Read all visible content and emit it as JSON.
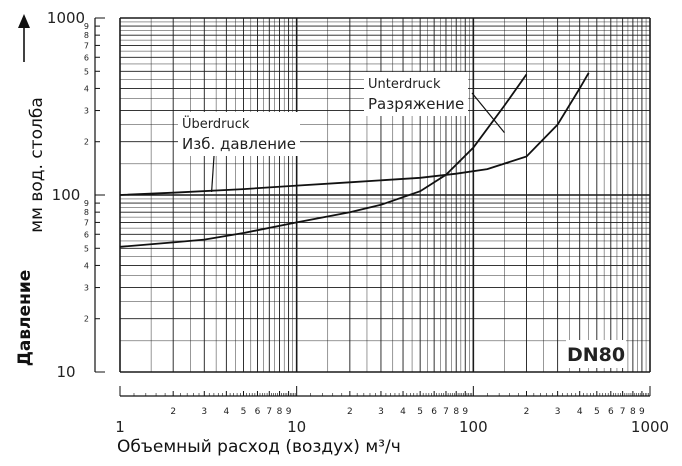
{
  "chart_data": {
    "type": "line",
    "xscale": "log",
    "yscale": "log",
    "xlim": [
      1,
      1000
    ],
    "ylim": [
      10,
      1000
    ],
    "xlabel": "Объемный расход (воздух) м³/ч",
    "ylabel_top": "мм вод. столба",
    "ylabel_bottom": "Давление",
    "x_major_ticks": [
      {
        "value": 1,
        "label": "1"
      },
      {
        "value": 10,
        "label": "10"
      },
      {
        "value": 100,
        "label": "100"
      },
      {
        "value": 1000,
        "label": "1000"
      }
    ],
    "y_major_ticks": [
      {
        "value": 10,
        "label": "10"
      },
      {
        "value": 100,
        "label": "100"
      },
      {
        "value": 1000,
        "label": "1000"
      }
    ],
    "minor_tick_labels": [
      "2",
      "3",
      "4",
      "5",
      "6",
      "7",
      "8",
      "9"
    ],
    "annotation": "DN80",
    "series": [
      {
        "label_de": "Überdruck",
        "label_ru": "Изб. давление",
        "x": [
          1,
          2,
          5,
          10,
          20,
          50,
          80,
          120,
          200,
          300,
          400,
          450
        ],
        "y": [
          100,
          103,
          108,
          113,
          118,
          125,
          132,
          140,
          165,
          250,
          400,
          490
        ]
      },
      {
        "label_de": "Unterdruck",
        "label_ru": "Разряжение",
        "x": [
          1,
          2,
          3,
          5,
          10,
          20,
          30,
          50,
          70,
          100,
          150,
          200
        ],
        "y": [
          51,
          54,
          56,
          61,
          70,
          80,
          88,
          105,
          130,
          185,
          320,
          480
        ]
      }
    ]
  }
}
